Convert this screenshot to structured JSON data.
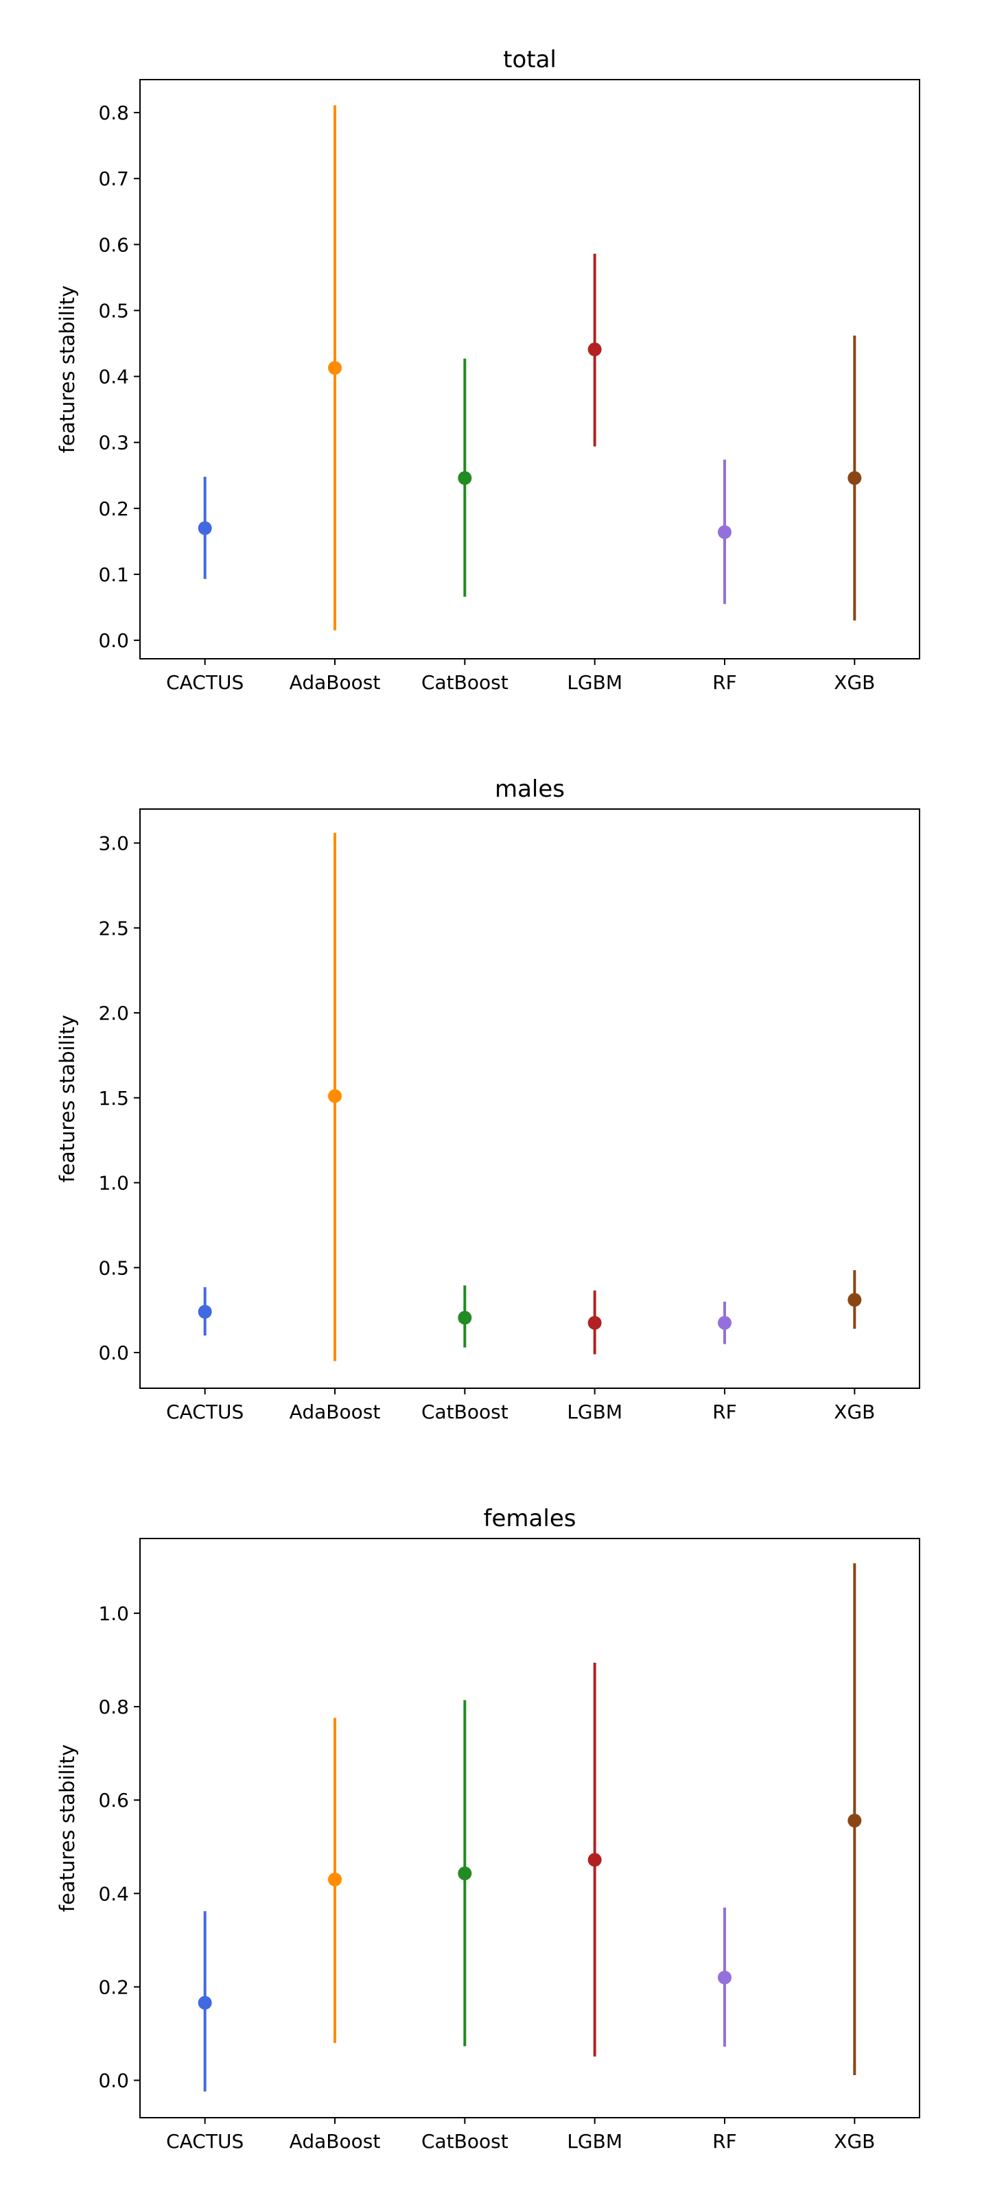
{
  "colors": {
    "CACTUS": "#4169e1",
    "AdaBoost": "#ff8c00",
    "CatBoost": "#228b22",
    "LGBM": "#b22222",
    "RF": "#9370db",
    "XGB": "#8b4513"
  },
  "chart_data": [
    {
      "type": "errorbar",
      "title": "total",
      "xlabel": "",
      "ylabel": "features stability",
      "categories": [
        "CACTUS",
        "AdaBoost",
        "CatBoost",
        "LGBM",
        "RF",
        "XGB"
      ],
      "values": [
        0.17,
        0.413,
        0.246,
        0.441,
        0.164,
        0.246
      ],
      "lower": [
        0.093,
        0.015,
        0.066,
        0.294,
        0.055,
        0.03
      ],
      "upper": [
        0.248,
        0.811,
        0.427,
        0.586,
        0.274,
        0.462
      ],
      "ylim": [
        -0.028,
        0.85
      ],
      "yticks": [
        0.0,
        0.1,
        0.2,
        0.3,
        0.4,
        0.5,
        0.6,
        0.7,
        0.8
      ],
      "ytick_labels": [
        "0.0",
        "0.1",
        "0.2",
        "0.3",
        "0.4",
        "0.5",
        "0.6",
        "0.7",
        "0.8"
      ]
    },
    {
      "type": "errorbar",
      "title": "males",
      "xlabel": "",
      "ylabel": "features stability",
      "categories": [
        "CACTUS",
        "AdaBoost",
        "CatBoost",
        "LGBM",
        "RF",
        "XGB"
      ],
      "values": [
        0.24,
        1.51,
        0.205,
        0.175,
        0.175,
        0.31
      ],
      "lower": [
        0.1,
        -0.05,
        0.03,
        -0.01,
        0.05,
        0.14
      ],
      "upper": [
        0.385,
        3.06,
        0.395,
        0.365,
        0.3,
        0.485
      ],
      "ylim": [
        -0.21,
        3.2
      ],
      "yticks": [
        0.0,
        0.5,
        1.0,
        1.5,
        2.0,
        2.5,
        3.0
      ],
      "ytick_labels": [
        "0.0",
        "0.5",
        "1.0",
        "1.5",
        "2.0",
        "2.5",
        "3.0"
      ]
    },
    {
      "type": "errorbar",
      "title": "females",
      "xlabel": "",
      "ylabel": "features stability",
      "categories": [
        "CACTUS",
        "AdaBoost",
        "CatBoost",
        "LGBM",
        "RF",
        "XGB"
      ],
      "values": [
        0.166,
        0.43,
        0.443,
        0.472,
        0.22,
        0.556
      ],
      "lower": [
        -0.024,
        0.08,
        0.073,
        0.051,
        0.072,
        0.011
      ],
      "upper": [
        0.362,
        0.776,
        0.814,
        0.894,
        0.37,
        1.107
      ],
      "ylim": [
        -0.08,
        1.16
      ],
      "yticks": [
        0.0,
        0.2,
        0.4,
        0.6,
        0.8,
        1.0
      ],
      "ytick_labels": [
        "0.0",
        "0.2",
        "0.4",
        "0.6",
        "0.8",
        "1.0"
      ]
    }
  ]
}
